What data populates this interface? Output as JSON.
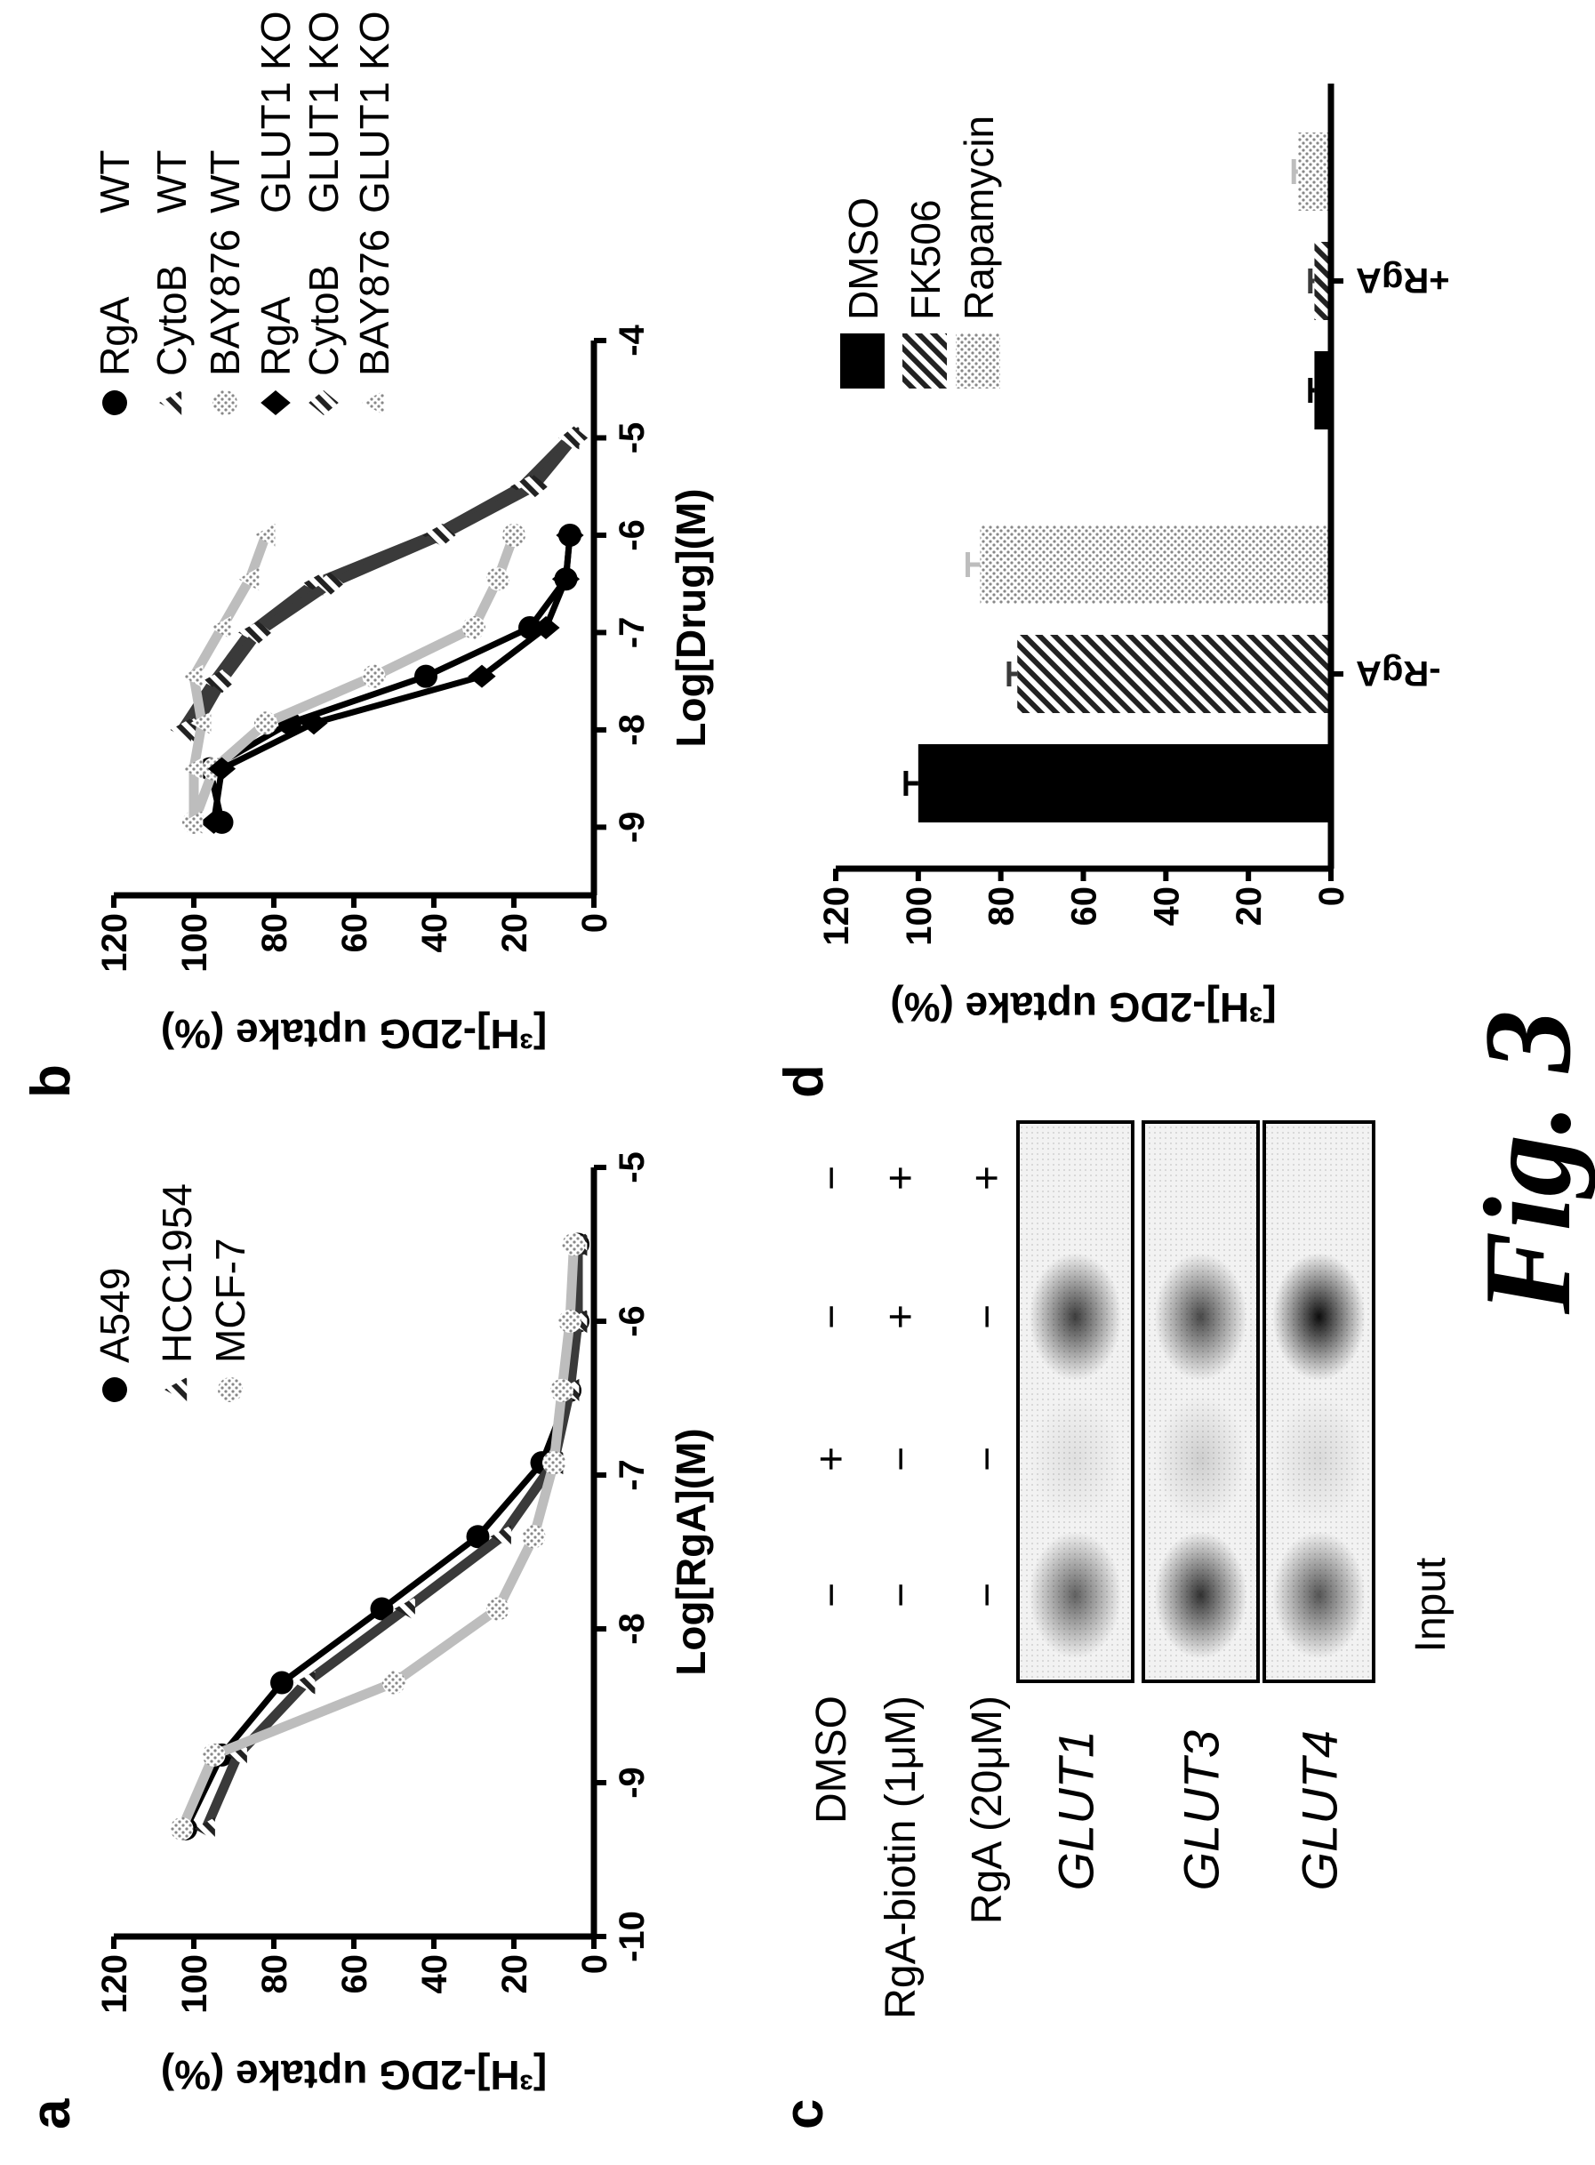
{
  "panels": {
    "a": "a",
    "b": "b",
    "c": "c",
    "d": "d"
  },
  "figure_label": "Fig. 3",
  "colors": {
    "black": "#000000",
    "hatched": "#4a4a4a",
    "light": "#bdbdbd"
  },
  "blot": {
    "treatments": [
      {
        "label": "DMSO",
        "signs": [
          "−",
          "+",
          "−",
          "−"
        ]
      },
      {
        "label": "RgA-biotin (1μM)",
        "signs": [
          "−",
          "−",
          "+",
          "+"
        ]
      },
      {
        "label": "RgA (20μM)",
        "signs": [
          "−",
          "−",
          "−",
          "+"
        ]
      }
    ],
    "proteins": [
      {
        "label": "GLUT1",
        "band_intensity": [
          0.6,
          0.08,
          0.75,
          0
        ]
      },
      {
        "label": "GLUT3",
        "band_intensity": [
          0.8,
          0.15,
          0.7,
          0
        ]
      },
      {
        "label": "GLUT4",
        "band_intensity": [
          0.65,
          0.1,
          0.95,
          0
        ]
      }
    ],
    "input_label": "Input"
  },
  "chart_data": [
    {
      "type": "line",
      "panel": "a",
      "title": "",
      "xlabel": "Log[RgA](M)",
      "ylabel": "[³H]-2DG uptake (%)",
      "xlim": [
        -10,
        -5
      ],
      "ylim": [
        0,
        120
      ],
      "xticks": [
        -10,
        -9,
        -8,
        -7,
        -6,
        -5
      ],
      "xtick_labels": [
        "-10",
        "-9",
        "-8",
        "-7",
        "-6",
        "-5"
      ],
      "yticks": [
        0,
        20,
        40,
        60,
        80,
        100,
        120
      ],
      "ytick_labels": [
        "0",
        "20",
        "40",
        "60",
        "80",
        "100",
        "120"
      ],
      "legend": "top-right",
      "x": [
        -9.3,
        -8.82,
        -8.35,
        -7.87,
        -7.4,
        -6.92,
        -6.45,
        -6.0,
        -5.5
      ],
      "series": [
        {
          "name": "A549",
          "style": "black",
          "marker": "circle",
          "values": [
            102,
            93,
            78,
            53,
            29,
            13,
            6,
            4,
            4
          ]
        },
        {
          "name": "HCC1954",
          "style": "hatched",
          "marker": "triangle",
          "values": [
            97,
            89,
            72,
            47,
            23,
            10,
            6,
            4,
            4
          ]
        },
        {
          "name": "MCF-7",
          "style": "light",
          "marker": "circle",
          "values": [
            103,
            95,
            50,
            24,
            15,
            10,
            8,
            6,
            5
          ]
        }
      ]
    },
    {
      "type": "line",
      "panel": "b",
      "title": "",
      "xlabel": "Log[Drug](M)",
      "ylabel": "[³H]-2DG uptake (%)",
      "xlim": [
        -9.7,
        -4
      ],
      "ylim": [
        0,
        120
      ],
      "xticks": [
        -9,
        -8,
        -7,
        -6,
        -5,
        -4
      ],
      "xtick_labels": [
        "-9",
        "-8",
        "-7",
        "-6",
        "-5",
        "-4"
      ],
      "yticks": [
        0,
        20,
        40,
        60,
        80,
        100,
        120
      ],
      "ytick_labels": [
        "0",
        "20",
        "40",
        "60",
        "80",
        "100",
        "120"
      ],
      "legend": "top-right",
      "series": [
        {
          "drug": "RgA",
          "cell": "WT",
          "style": "black",
          "marker": "circle",
          "x": [
            -8.95,
            -8.4,
            -7.93,
            -7.45,
            -6.95,
            -6.45,
            -6.0
          ],
          "values": [
            93,
            96,
            76,
            42,
            16,
            7,
            6
          ]
        },
        {
          "drug": "CytoB",
          "cell": "WT",
          "style": "hatched",
          "marker": "triangle",
          "x": [
            -8.0,
            -7.5,
            -7.0,
            -6.5,
            -6.0,
            -5.5,
            -5.0
          ],
          "values": [
            103,
            95,
            86,
            70,
            40,
            18,
            6
          ]
        },
        {
          "drug": "BAY876",
          "cell": "WT",
          "style": "light",
          "marker": "circle",
          "x": [
            -8.95,
            -8.4,
            -7.93,
            -7.45,
            -6.95,
            -6.45,
            -6.0
          ],
          "values": [
            100,
            95,
            82,
            55,
            30,
            24,
            20
          ]
        },
        {
          "drug": "RgA",
          "cell": "GLUT1 KO",
          "style": "black",
          "marker": "diamond",
          "x": [
            -8.95,
            -8.4,
            -7.93,
            -7.45,
            -6.95,
            -6.45,
            -6.0
          ],
          "values": [
            95,
            93,
            70,
            28,
            12,
            7,
            6
          ]
        },
        {
          "drug": "CytoB",
          "cell": "GLUT1 KO",
          "style": "hatched",
          "marker": "diamond",
          "x": [
            -8.0,
            -7.5,
            -7.0,
            -6.5,
            -6.0,
            -5.5,
            -5.0
          ],
          "values": [
            100,
            93,
            84,
            66,
            38,
            15,
            5
          ]
        },
        {
          "drug": "BAY876",
          "cell": "GLUT1 KO",
          "style": "light",
          "marker": "triangle",
          "x": [
            -8.95,
            -8.4,
            -7.93,
            -7.45,
            -6.95,
            -6.45,
            -6.0
          ],
          "values": [
            100,
            100,
            98,
            100,
            93,
            86,
            82
          ]
        }
      ]
    },
    {
      "type": "bar",
      "panel": "d",
      "title": "",
      "xlabel": "",
      "ylabel": "[³H]-2DG uptake (%)",
      "ylim": [
        0,
        120
      ],
      "yticks": [
        0,
        20,
        40,
        60,
        80,
        100,
        120
      ],
      "ytick_labels": [
        "0",
        "20",
        "40",
        "60",
        "80",
        "100",
        "120"
      ],
      "categories": [
        "-RgA",
        "+RgA"
      ],
      "legend": "top-right",
      "series": [
        {
          "name": "DMSO",
          "style": "black",
          "values": [
            100,
            4
          ],
          "errors": [
            3,
            1
          ]
        },
        {
          "name": "FK506",
          "style": "hatched",
          "values": [
            76,
            4
          ],
          "errors": [
            2,
            1
          ]
        },
        {
          "name": "Rapamycin",
          "style": "light",
          "values": [
            85,
            8
          ],
          "errors": [
            3,
            1
          ]
        }
      ]
    }
  ]
}
